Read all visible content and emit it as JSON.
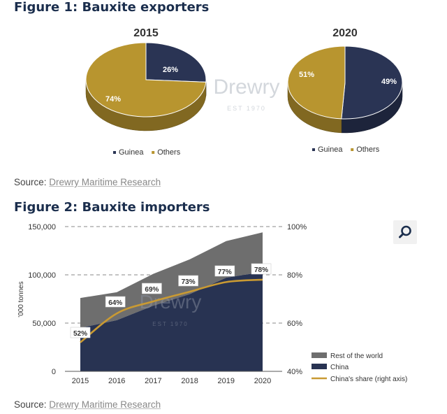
{
  "figure1": {
    "title": "Figure 1: Bauxite exporters",
    "source_prefix": "Source:",
    "source_name": "Drewry Maritime Research"
  },
  "figure2": {
    "title": "Figure 2: Bauxite importers",
    "source_prefix": "Source:",
    "source_name": "Drewry Maritime Research"
  },
  "watermark": {
    "brand": "Drewry",
    "est": "EST 1970"
  },
  "search_icon": "search-icon",
  "colors": {
    "guinea": "#2a3454",
    "others": "#b8952f",
    "china": "#283352",
    "rest_of_world": "#6e6e6e",
    "china_share": "#c99a33",
    "title": "#1b2e4d"
  },
  "chart_data": [
    {
      "type": "pie",
      "title": "2015",
      "labels": [
        "Guinea",
        "Others"
      ],
      "values": [
        26,
        74
      ],
      "value_labels": [
        "26%",
        "74%"
      ],
      "legend": "bottom"
    },
    {
      "type": "pie",
      "title": "2020",
      "labels": [
        "Guinea",
        "Others"
      ],
      "values": [
        51,
        49
      ],
      "value_labels": [
        "51%",
        "49%"
      ],
      "legend": "bottom"
    },
    {
      "type": "area",
      "title": "",
      "ylabel": "'000 tonnes",
      "categories": [
        "2015",
        "2016",
        "2017",
        "2018",
        "2019",
        "2020"
      ],
      "ylim": [
        0,
        150000
      ],
      "yticks": [
        "0",
        "50,000",
        "100,000",
        "150,000"
      ],
      "ylim_right": [
        40,
        100
      ],
      "yticks_right": [
        "40%",
        "60%",
        "80%",
        "100%"
      ],
      "grid": "dashed horizontal",
      "legend": "bottom-right",
      "series": [
        {
          "name": "Rest of the world",
          "kind": "stacked-area",
          "values": [
            31000,
            29000,
            33000,
            36000,
            38000,
            41000
          ]
        },
        {
          "name": "China",
          "kind": "stacked-area",
          "values": [
            45000,
            53000,
            68000,
            80000,
            97000,
            103000
          ]
        },
        {
          "name": "China's share (right axis)",
          "kind": "line",
          "axis": "right",
          "values": [
            52,
            64,
            69,
            73,
            77,
            78
          ],
          "labels": [
            "52%",
            "64%",
            "69%",
            "73%",
            "77%",
            "78%"
          ]
        }
      ]
    }
  ]
}
